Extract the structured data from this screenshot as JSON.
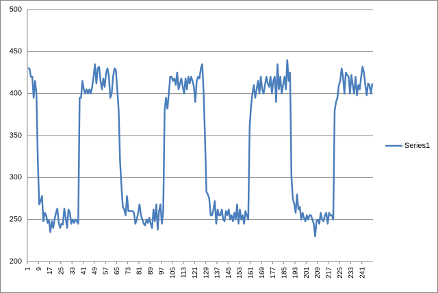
{
  "chart_data": {
    "type": "line",
    "categories": [
      1,
      null,
      null,
      null,
      null,
      null,
      null,
      null,
      9,
      null,
      null,
      null,
      null,
      null,
      null,
      null,
      17,
      null,
      null,
      null,
      null,
      null,
      null,
      null,
      25,
      null,
      null,
      null,
      null,
      null,
      null,
      null,
      33,
      null,
      null,
      null,
      null,
      null,
      null,
      null,
      41,
      null,
      null,
      null,
      null,
      null,
      null,
      null,
      49,
      null,
      null,
      null,
      null,
      null,
      null,
      null,
      57,
      null,
      null,
      null,
      null,
      null,
      null,
      null,
      65,
      null,
      null,
      null,
      null,
      null,
      null,
      null,
      73,
      null,
      null,
      null,
      null,
      null,
      null,
      null,
      81,
      null,
      null,
      null,
      null,
      null,
      null,
      null,
      89,
      null,
      null,
      null,
      null,
      null,
      null,
      null,
      97,
      null,
      null,
      null,
      null,
      null,
      null,
      null,
      105,
      null,
      null,
      null,
      null,
      null,
      null,
      null,
      113,
      null,
      null,
      null,
      null,
      null,
      null,
      null,
      121,
      null,
      null,
      null,
      null,
      null,
      null,
      null,
      129,
      null,
      null,
      null,
      null,
      null,
      null,
      null,
      137,
      null,
      null,
      null,
      null,
      null,
      null,
      null,
      145,
      null,
      null,
      null,
      null,
      null,
      null,
      null,
      153,
      null,
      null,
      null,
      null,
      null,
      null,
      null,
      161,
      null,
      null,
      null,
      null,
      null,
      null,
      null,
      169,
      null,
      null,
      null,
      null,
      null,
      null,
      null,
      177,
      null,
      null,
      null,
      null,
      null,
      null,
      null,
      185,
      null,
      null,
      null,
      null,
      null,
      null,
      null,
      193,
      null,
      null,
      null,
      null,
      null,
      null,
      null,
      201,
      null,
      null,
      null,
      null,
      null,
      null,
      null,
      209,
      null,
      null,
      null,
      null,
      null,
      null,
      null,
      217,
      null,
      null,
      null,
      null,
      null,
      null,
      null,
      225,
      null,
      null,
      null,
      null,
      null,
      null,
      null,
      233,
      null,
      null,
      null,
      null,
      null,
      null,
      null,
      241,
      null,
      null,
      null,
      null,
      null,
      null,
      null
    ],
    "series": [
      {
        "name": "Series1",
        "color": "#4a7ebb",
        "values": [
          430,
          430,
          420,
          420,
          395,
          415,
          400,
          320,
          268,
          272,
          278,
          248,
          258,
          255,
          246,
          249,
          235,
          248,
          240,
          250,
          258,
          263,
          246,
          240,
          245,
          244,
          263,
          252,
          240,
          262,
          258,
          245,
          250,
          246,
          250,
          248,
          245,
          395,
          395,
          415,
          405,
          400,
          405,
          400,
          405,
          400,
          408,
          420,
          435,
          412,
          430,
          432,
          415,
          405,
          418,
          408,
          425,
          430,
          420,
          395,
          400,
          420,
          430,
          428,
          405,
          380,
          320,
          290,
          265,
          262,
          255,
          278,
          260,
          260,
          260,
          260,
          258,
          245,
          250,
          258,
          268,
          255,
          250,
          245,
          243,
          250,
          246,
          252,
          245,
          240,
          262,
          248,
          268,
          238,
          260,
          268,
          245,
          260,
          380,
          395,
          382,
          400,
          420,
          420,
          415,
          418,
          410,
          425,
          405,
          412,
          418,
          408,
          400,
          418,
          405,
          420,
          412,
          420,
          415,
          408,
          390,
          415,
          420,
          418,
          430,
          435,
          400,
          345,
          283,
          280,
          275,
          255,
          255,
          262,
          272,
          245,
          262,
          255,
          255,
          262,
          250,
          248,
          260,
          255,
          262,
          250,
          255,
          248,
          258,
          250,
          268,
          245,
          262,
          250,
          255,
          245,
          260,
          255,
          250,
          360,
          385,
          400,
          410,
          395,
          405,
          415,
          400,
          420,
          405,
          400,
          410,
          420,
          412,
          408,
          420,
          400,
          415,
          420,
          390,
          435,
          405,
          420,
          400,
          410,
          420,
          405,
          440,
          415,
          425,
          300,
          275,
          268,
          258,
          280,
          262,
          265,
          250,
          258,
          252,
          248,
          255,
          250,
          255,
          255,
          250,
          245,
          230,
          248,
          250,
          245,
          258,
          250,
          248,
          255,
          258,
          245,
          258,
          255,
          255,
          250,
          380,
          390,
          395,
          410,
          415,
          430,
          420,
          400,
          425,
          422,
          420,
          400,
          422,
          410,
          400,
          420,
          398,
          410,
          405,
          420,
          432,
          425,
          410,
          398,
          412,
          410,
          400,
          412
        ]
      }
    ],
    "ylim": [
      200,
      500
    ],
    "yticks": [
      200,
      250,
      300,
      350,
      400,
      450,
      500
    ],
    "grid": true,
    "legend": "right"
  }
}
